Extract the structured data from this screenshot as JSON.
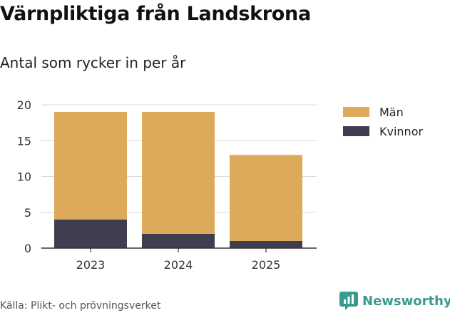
{
  "header": {
    "title": "Värnpliktiga från Landskrona",
    "subtitle": "Antal som rycker in per år"
  },
  "footer": {
    "source": "Källa: Plikt- och prövningsverket",
    "brand": "Newsworthy",
    "brand_icon": "newsworthy-logo-icon",
    "brand_color": "#3a9a8f"
  },
  "chart_data": {
    "type": "bar",
    "stacked": true,
    "title": "Värnpliktiga från Landskrona",
    "subtitle": "Antal som rycker in per år",
    "xlabel": "",
    "ylabel": "",
    "categories": [
      "2023",
      "2024",
      "2025"
    ],
    "series": [
      {
        "name": "Kvinnor",
        "color": "#403e4e",
        "values": [
          4,
          2,
          1
        ]
      },
      {
        "name": "Män",
        "color": "#dcaa5a",
        "values": [
          15,
          17,
          12
        ]
      }
    ],
    "ylim": [
      0,
      20
    ],
    "yticks": [
      0,
      5,
      10,
      15,
      20
    ],
    "grid": true,
    "legend": {
      "position": "right",
      "order": [
        "Män",
        "Kvinnor"
      ]
    }
  }
}
